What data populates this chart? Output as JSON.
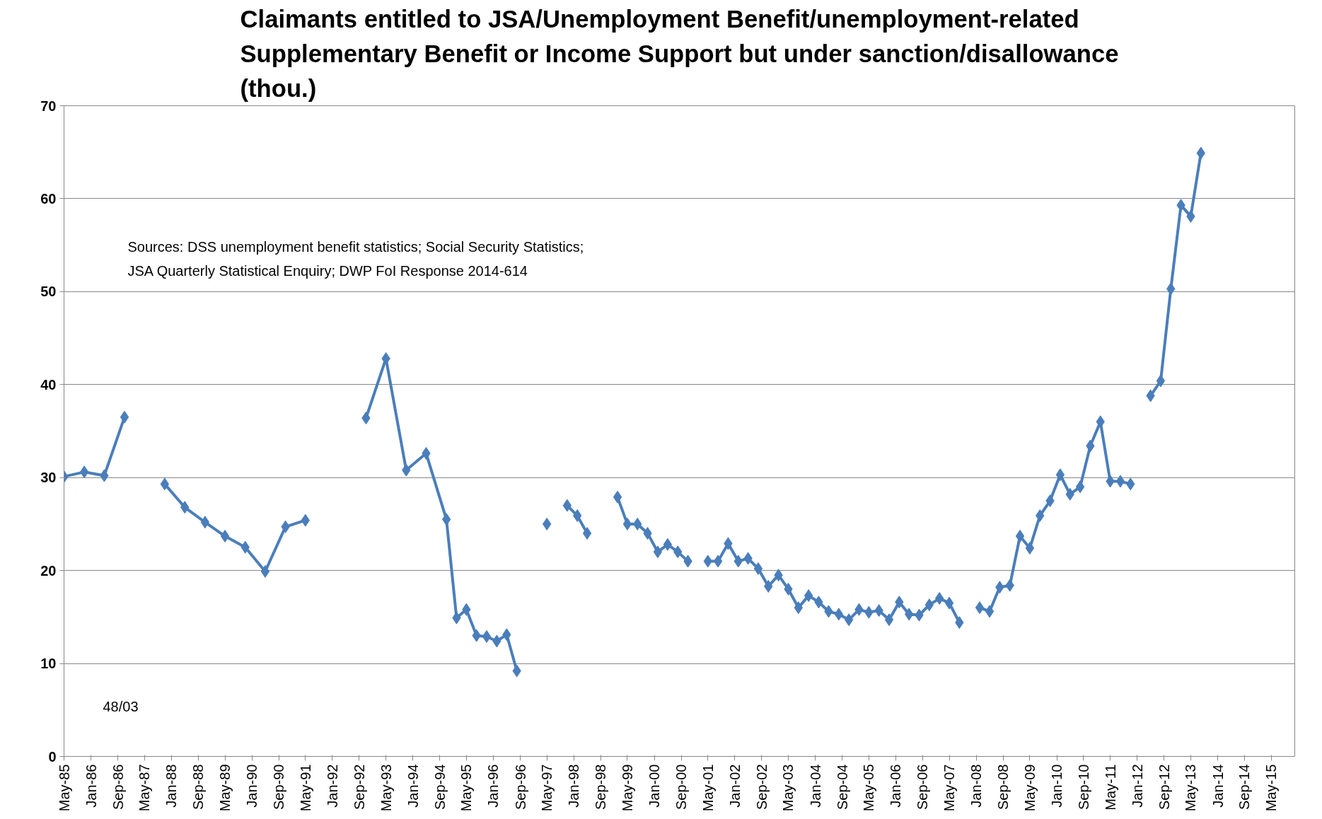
{
  "chart_data": {
    "type": "line",
    "title": "Claimants entitled to JSA/Unemployment Benefit/unemployment-related\nSupplementary Benefit or Income Support but under sanction/disallowance\n(thou.)",
    "annotations": [
      "Sources:  DSS unemployment  benefit statistics; Social Security Statistics;\nJSA Quarterly Statistical  Enquiry;  DWP FoI Response  2014-614",
      "48/03"
    ],
    "x": [
      "1985-05",
      "1985-11",
      "1986-05",
      "1986-11",
      "1987-05",
      "1987-11",
      "1988-05",
      "1988-11",
      "1989-05",
      "1989-11",
      "1990-05",
      "1990-11",
      "1991-05",
      "1992-05",
      "1992-11",
      "1993-05",
      "1993-11",
      "1994-05",
      "1994-11",
      "1995-02",
      "1995-05",
      "1995-08",
      "1995-11",
      "1996-02",
      "1996-05",
      "1996-08",
      "1996-11",
      "1997-05",
      "1997-08",
      "1997-11",
      "1998-02",
      "1998-05",
      "1998-08",
      "1999-02",
      "1999-05",
      "1999-08",
      "1999-11",
      "2000-02",
      "2000-05",
      "2000-08",
      "2000-11",
      "2001-02",
      "2001-05",
      "2001-08",
      "2001-11",
      "2002-02",
      "2002-05",
      "2002-08",
      "2002-11",
      "2003-02",
      "2003-05",
      "2003-08",
      "2003-11",
      "2004-02",
      "2004-05",
      "2004-08",
      "2004-11",
      "2005-02",
      "2005-05",
      "2005-08",
      "2005-11",
      "2006-02",
      "2006-05",
      "2006-08",
      "2006-11",
      "2007-02",
      "2007-05",
      "2007-08",
      "2007-11",
      "2008-02",
      "2008-05",
      "2008-08",
      "2008-11",
      "2009-02",
      "2009-05",
      "2009-08",
      "2009-11",
      "2010-02",
      "2010-05",
      "2010-08",
      "2010-11",
      "2011-02",
      "2011-05",
      "2011-08",
      "2011-11",
      "2012-02",
      "2012-05",
      "2012-08",
      "2012-11",
      "2013-02",
      "2013-05",
      "2013-08"
    ],
    "series": [
      {
        "color": "#4a7ebb",
        "values": [
          30.1,
          30.6,
          30.2,
          36.5,
          null,
          29.3,
          26.8,
          25.2,
          23.7,
          22.5,
          19.9,
          24.7,
          25.4,
          null,
          36.4,
          42.8,
          30.8,
          32.6,
          25.5,
          14.9,
          15.8,
          13.0,
          12.9,
          12.4,
          13.1,
          9.2,
          null,
          25.0,
          null,
          27.0,
          25.9,
          24.0,
          null,
          27.9,
          25.0,
          25.0,
          24.0,
          22.0,
          22.8,
          22.0,
          21.0,
          null,
          21.0,
          21.0,
          22.9,
          21.0,
          21.3,
          20.2,
          18.3,
          19.5,
          18.0,
          16.0,
          17.3,
          16.6,
          15.6,
          15.3,
          14.7,
          15.8,
          15.5,
          15.7,
          14.7,
          16.6,
          15.3,
          15.2,
          16.3,
          17.0,
          16.5,
          14.4,
          null,
          16.0,
          15.6,
          18.2,
          18.4,
          23.7,
          22.4,
          25.9,
          27.5,
          30.3,
          28.2,
          29.0,
          33.4,
          36.0,
          29.6,
          29.6,
          29.3,
          null,
          38.8,
          40.4,
          50.3,
          59.3,
          58.1,
          64.9
        ]
      }
    ],
    "xlim": [
      "1985-05",
      "2015-12"
    ],
    "xticks": [
      {
        "value": "1985-05",
        "label": "May-85"
      },
      {
        "value": "1986-01",
        "label": "Jan-86"
      },
      {
        "value": "1986-09",
        "label": "Sep-86"
      },
      {
        "value": "1987-05",
        "label": "May-87"
      },
      {
        "value": "1988-01",
        "label": "Jan-88"
      },
      {
        "value": "1988-09",
        "label": "Sep-88"
      },
      {
        "value": "1989-05",
        "label": "May-89"
      },
      {
        "value": "1990-01",
        "label": "Jan-90"
      },
      {
        "value": "1990-09",
        "label": "Sep-90"
      },
      {
        "value": "1991-05",
        "label": "May-91"
      },
      {
        "value": "1992-01",
        "label": "Jan-92"
      },
      {
        "value": "1992-09",
        "label": "Sep-92"
      },
      {
        "value": "1993-05",
        "label": "May-93"
      },
      {
        "value": "1994-01",
        "label": "Jan-94"
      },
      {
        "value": "1994-09",
        "label": "Sep-94"
      },
      {
        "value": "1995-05",
        "label": "May-95"
      },
      {
        "value": "1996-01",
        "label": "Jan-96"
      },
      {
        "value": "1996-09",
        "label": "Sep-96"
      },
      {
        "value": "1997-05",
        "label": "May-97"
      },
      {
        "value": "1998-01",
        "label": "Jan-98"
      },
      {
        "value": "1998-09",
        "label": "Sep-98"
      },
      {
        "value": "1999-05",
        "label": "May-99"
      },
      {
        "value": "2000-01",
        "label": "Jan-00"
      },
      {
        "value": "2000-09",
        "label": "Sep-00"
      },
      {
        "value": "2001-05",
        "label": "May-01"
      },
      {
        "value": "2002-01",
        "label": "Jan-02"
      },
      {
        "value": "2002-09",
        "label": "Sep-02"
      },
      {
        "value": "2003-05",
        "label": "May-03"
      },
      {
        "value": "2004-01",
        "label": "Jan-04"
      },
      {
        "value": "2004-09",
        "label": "Sep-04"
      },
      {
        "value": "2005-05",
        "label": "May-05"
      },
      {
        "value": "2006-01",
        "label": "Jan-06"
      },
      {
        "value": "2006-09",
        "label": "Sep-06"
      },
      {
        "value": "2007-05",
        "label": "May-07"
      },
      {
        "value": "2008-01",
        "label": "Jan-08"
      },
      {
        "value": "2008-09",
        "label": "Sep-08"
      },
      {
        "value": "2009-05",
        "label": "May-09"
      },
      {
        "value": "2010-01",
        "label": "Jan-10"
      },
      {
        "value": "2010-09",
        "label": "Sep-10"
      },
      {
        "value": "2011-05",
        "label": "May-11"
      },
      {
        "value": "2012-01",
        "label": "Jan-12"
      },
      {
        "value": "2012-09",
        "label": "Sep-12"
      },
      {
        "value": "2013-05",
        "label": "May-13"
      },
      {
        "value": "2014-01",
        "label": "Jan-14"
      },
      {
        "value": "2014-09",
        "label": "Sep-14"
      },
      {
        "value": "2015-05",
        "label": "May-15"
      }
    ],
    "ylim": [
      0,
      70
    ],
    "yticks": [
      0,
      10,
      20,
      30,
      40,
      50,
      60,
      70
    ],
    "grid": "y",
    "marker": "diamond",
    "line_style": "solid"
  }
}
